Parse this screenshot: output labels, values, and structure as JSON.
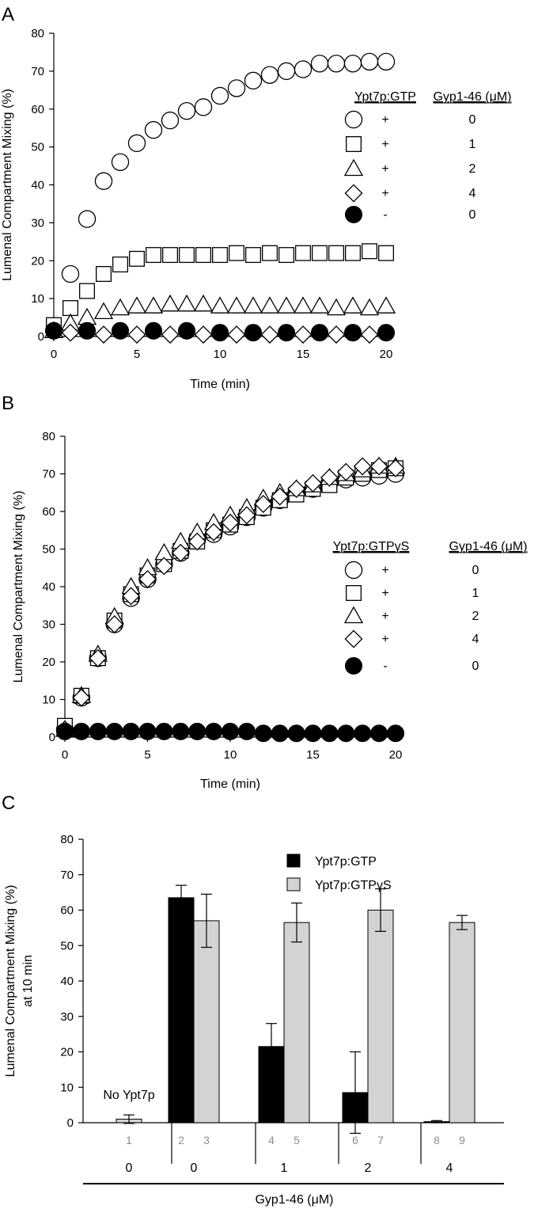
{
  "chart_data": [
    {
      "panel": "A",
      "type": "scatter",
      "xlabel": "Time (min)",
      "ylabel": "Lumenal Compartment Mixing (%)",
      "xlim": [
        0,
        20
      ],
      "ylim": [
        0,
        80
      ],
      "xticks": [
        "0",
        "5",
        "10",
        "15",
        "20"
      ],
      "yticks": [
        "0",
        "10",
        "20",
        "30",
        "40",
        "50",
        "60",
        "70",
        "80"
      ],
      "legend": {
        "col1": "Ypt7p:GTP",
        "col2": "Gyp1-46 (μM)",
        "rows": [
          {
            "marker": "circle-open",
            "sign": "+",
            "conc": "0"
          },
          {
            "marker": "square-open",
            "sign": "+",
            "conc": "1"
          },
          {
            "marker": "triangle-open",
            "sign": "+",
            "conc": "2"
          },
          {
            "marker": "diamond-open",
            "sign": "+",
            "conc": "4"
          },
          {
            "marker": "circle-filled",
            "sign": "-",
            "conc": "0"
          }
        ]
      },
      "series": [
        {
          "marker": "circle-open",
          "x": [
            1,
            2,
            3,
            4,
            5,
            6,
            7,
            8,
            9,
            10,
            11,
            12,
            13,
            14,
            15,
            16,
            17,
            18,
            19,
            20
          ],
          "y": [
            16.5,
            31,
            41,
            46,
            51,
            54.5,
            57,
            59.5,
            60.5,
            63.5,
            65.5,
            67.5,
            69,
            70,
            70.5,
            72,
            72,
            72,
            72.5,
            72.5
          ]
        },
        {
          "marker": "square-open",
          "x": [
            0,
            1,
            2,
            3,
            4,
            5,
            6,
            7,
            8,
            9,
            10,
            11,
            12,
            13,
            14,
            15,
            16,
            17,
            18,
            19,
            20
          ],
          "y": [
            3,
            7.5,
            12,
            16.5,
            19,
            20.5,
            21.5,
            21.5,
            21.5,
            21.5,
            21.5,
            22,
            21.5,
            22,
            21.5,
            22,
            22,
            22,
            22,
            22.5,
            22
          ]
        },
        {
          "marker": "triangle-open",
          "x": [
            0,
            1,
            2,
            3,
            4,
            5,
            6,
            7,
            8,
            9,
            10,
            11,
            12,
            13,
            14,
            15,
            16,
            17,
            18,
            19,
            20
          ],
          "y": [
            1.5,
            3.5,
            5,
            6.5,
            7.5,
            8,
            8,
            8.5,
            8.5,
            8.5,
            8,
            8,
            8,
            8,
            8,
            8,
            8,
            7.5,
            8,
            7.5,
            8
          ]
        },
        {
          "marker": "diamond-open",
          "x": [
            1,
            3,
            5,
            7,
            9,
            11,
            13,
            15,
            17,
            19
          ],
          "y": [
            1,
            0.5,
            0.5,
            0.5,
            0.5,
            0.5,
            0.5,
            0.5,
            0.5,
            0.5
          ]
        },
        {
          "marker": "circle-filled",
          "x": [
            0,
            2,
            4,
            6,
            8,
            10,
            12,
            14,
            16,
            18,
            20
          ],
          "y": [
            1.5,
            1.5,
            1.5,
            1.5,
            1.5,
            1,
            1,
            1,
            1,
            1,
            1
          ]
        }
      ]
    },
    {
      "panel": "B",
      "type": "scatter",
      "xlabel": "Time (min)",
      "ylabel": "Lumenal Compartment Mixing (%)",
      "xlim": [
        0,
        20
      ],
      "ylim": [
        0,
        80
      ],
      "xticks": [
        "0",
        "5",
        "10",
        "15",
        "20"
      ],
      "yticks": [
        "0",
        "10",
        "20",
        "30",
        "40",
        "50",
        "60",
        "70",
        "80"
      ],
      "legend": {
        "col1": "Ypt7p:GTPγS",
        "col2": "Gyp1-46 (μM)",
        "rows": [
          {
            "marker": "circle-open",
            "sign": "+",
            "conc": "0"
          },
          {
            "marker": "square-open",
            "sign": "+",
            "conc": "1"
          },
          {
            "marker": "triangle-open",
            "sign": "+",
            "conc": "2"
          },
          {
            "marker": "diamond-open",
            "sign": "+",
            "conc": "4"
          },
          {
            "marker": "circle-filled",
            "sign": "-",
            "conc": "0"
          }
        ]
      },
      "series": [
        {
          "marker": "circle-open",
          "x": [
            0,
            1,
            2,
            3,
            4,
            5,
            6,
            7,
            8,
            9,
            10,
            11,
            12,
            13,
            14,
            15,
            16,
            17,
            18,
            19,
            20
          ],
          "y": [
            2,
            10.5,
            21,
            30,
            37,
            42,
            46,
            49,
            52.5,
            54,
            56,
            58.5,
            61,
            63,
            65,
            66,
            67.5,
            68.5,
            69,
            69.5,
            70
          ]
        },
        {
          "marker": "square-open",
          "x": [
            0,
            1,
            2,
            3,
            4,
            5,
            6,
            7,
            8,
            9,
            10,
            11,
            12,
            13,
            14,
            15,
            16,
            17,
            18,
            19,
            20
          ],
          "y": [
            3,
            11,
            21,
            31,
            38,
            43,
            46,
            49.5,
            52,
            55,
            56.5,
            58.5,
            61,
            63,
            64.5,
            66,
            67,
            69,
            70,
            71,
            71.5
          ]
        },
        {
          "marker": "triangle-open",
          "x": [
            0,
            1,
            2,
            3,
            4,
            5,
            6,
            7,
            8,
            9,
            10,
            11,
            12,
            13,
            14,
            15,
            16,
            17,
            18,
            19,
            20
          ],
          "y": [
            2,
            11,
            22,
            32,
            40,
            45,
            49,
            52,
            54.5,
            57,
            59,
            61,
            63.5,
            65,
            66,
            67,
            69,
            70,
            71,
            72,
            72
          ]
        },
        {
          "marker": "diamond-open",
          "x": [
            0,
            1,
            2,
            3,
            4,
            5,
            6,
            7,
            8,
            9,
            10,
            11,
            12,
            13,
            14,
            15,
            16,
            17,
            18,
            19,
            20
          ],
          "y": [
            2,
            10.5,
            21,
            30,
            37.5,
            42,
            45.5,
            49,
            52,
            54.5,
            57,
            59,
            62,
            64,
            66,
            67.5,
            69,
            70.5,
            72,
            72,
            71.5
          ]
        },
        {
          "marker": "circle-filled",
          "x": [
            0,
            1,
            2,
            3,
            4,
            5,
            6,
            7,
            8,
            9,
            10,
            11,
            12,
            13,
            14,
            15,
            16,
            17,
            18,
            19,
            20
          ],
          "y": [
            1.5,
            1.5,
            1.5,
            1.5,
            1.5,
            1.5,
            1.5,
            1.5,
            1.5,
            1.5,
            1.5,
            1.5,
            1,
            1,
            1,
            1,
            1,
            1,
            1,
            1,
            1
          ]
        }
      ]
    },
    {
      "panel": "C",
      "type": "bar",
      "ylabel": "Lumenal Compartment Mixing (%)",
      "ylabel2": "at 10 min",
      "ylim": [
        0,
        80
      ],
      "yticks": [
        "0",
        "10",
        "20",
        "30",
        "40",
        "50",
        "60",
        "70",
        "80"
      ],
      "xlabel": "Gyp1-46 (μM)",
      "annotation": "No Ypt7p",
      "legend": [
        {
          "name": "Ypt7p:GTP",
          "color": "#000000"
        },
        {
          "name": "Ypt7p:GTPγS",
          "color": "#d3d3d3"
        }
      ],
      "groups": [
        "0",
        "0",
        "1",
        "2",
        "4"
      ],
      "bars": [
        {
          "lane": "1",
          "group": 0,
          "series": 1,
          "value": 1,
          "error": 1.2
        },
        {
          "lane": "2",
          "group": 1,
          "series": 0,
          "value": 63.5,
          "error": 3.5
        },
        {
          "lane": "3",
          "group": 1,
          "series": 1,
          "value": 57,
          "error": 7.5
        },
        {
          "lane": "4",
          "group": 2,
          "series": 0,
          "value": 21.5,
          "error": 6.5
        },
        {
          "lane": "5",
          "group": 2,
          "series": 1,
          "value": 56.5,
          "error": 5.5
        },
        {
          "lane": "6",
          "group": 3,
          "series": 0,
          "value": 8.5,
          "error": 11.5
        },
        {
          "lane": "7",
          "group": 3,
          "series": 1,
          "value": 60,
          "error": 6
        },
        {
          "lane": "8",
          "group": 4,
          "series": 0,
          "value": 0.3,
          "error": 0.3
        },
        {
          "lane": "9",
          "group": 4,
          "series": 1,
          "value": 56.5,
          "error": 2
        }
      ]
    }
  ]
}
